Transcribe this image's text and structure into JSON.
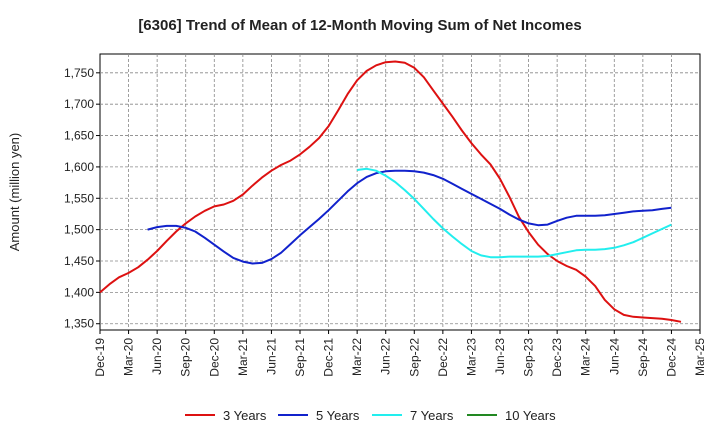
{
  "chart_data": {
    "type": "line",
    "title": "[6306]  Trend of Mean of 12-Month Moving Sum of Net Incomes",
    "ylabel": "Amount (million yen)",
    "xlabel": "",
    "ylim": [
      1340,
      1780
    ],
    "yticks": [
      1350,
      1400,
      1450,
      1500,
      1550,
      1600,
      1650,
      1700,
      1750
    ],
    "ytick_labels": [
      "1,350",
      "1,400",
      "1,450",
      "1,500",
      "1,550",
      "1,600",
      "1,650",
      "1,700",
      "1,750"
    ],
    "xticks": [
      "Dec-19",
      "Mar-20",
      "Jun-20",
      "Sep-20",
      "Dec-20",
      "Mar-21",
      "Jun-21",
      "Sep-21",
      "Dec-21",
      "Mar-22",
      "Jun-22",
      "Sep-22",
      "Dec-22",
      "Mar-23",
      "Jun-23",
      "Sep-23",
      "Dec-23",
      "Mar-24",
      "Jun-24",
      "Sep-24",
      "Dec-24",
      "Mar-25"
    ],
    "x_start": "Dec-19",
    "x_step": "1 month",
    "grid": true,
    "legend_position": "bottom",
    "series": [
      {
        "name": "3 Years",
        "color": "#dd1111",
        "values": [
          1400,
          1413,
          1424,
          1431,
          1440,
          1452,
          1466,
          1482,
          1497,
          1510,
          1521,
          1530,
          1537,
          1540,
          1546,
          1556,
          1570,
          1583,
          1594,
          1603,
          1610,
          1620,
          1632,
          1646,
          1665,
          1690,
          1716,
          1738,
          1753,
          1762,
          1767,
          1768,
          1766,
          1758,
          1743,
          1722,
          1701,
          1680,
          1658,
          1638,
          1620,
          1604,
          1581,
          1552,
          1520,
          1496,
          1476,
          1461,
          1450,
          1442,
          1436,
          1425,
          1410,
          1388,
          1373,
          1364,
          1361,
          1360,
          1359,
          1358,
          1356,
          1353
        ]
      },
      {
        "name": "5 Years",
        "color": "#1122cc",
        "values": [
          null,
          null,
          null,
          null,
          null,
          null,
          null,
          null,
          null,
          null,
          null,
          null,
          null,
          null,
          null,
          null,
          null,
          null,
          null,
          null,
          null,
          null,
          null,
          null,
          null,
          null,
          null,
          null,
          null,
          null,
          null,
          null,
          null,
          null,
          null,
          null,
          null,
          null,
          null,
          null,
          null,
          null,
          null,
          null,
          null,
          null,
          null,
          null,
          null,
          null,
          null,
          null,
          null,
          null,
          null,
          null,
          null,
          null,
          null,
          null,
          null,
          null
        ]
      },
      {
        "name": "7 Years",
        "color": "#22eeee",
        "values": []
      },
      {
        "name": "10 Years",
        "color": "#228822",
        "values": []
      }
    ]
  }
}
